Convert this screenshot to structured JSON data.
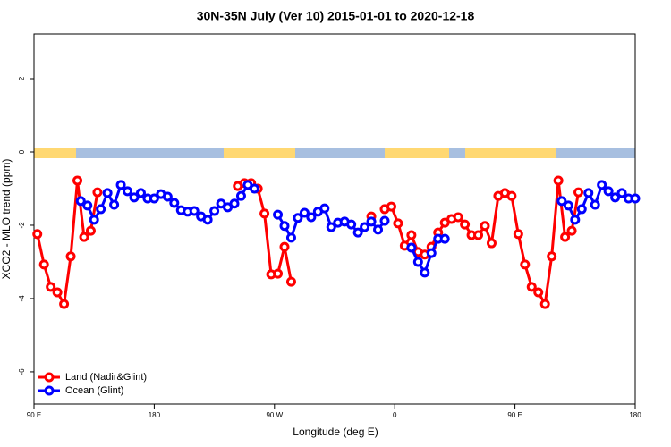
{
  "chart_data": {
    "type": "line",
    "title": "30N-35N July (Ver 10)   2015-01-01 to 2020-12-18",
    "xlabel": "Longitude (deg E)",
    "ylabel": "XCO2 - MLO trend (ppm)",
    "xlim": [
      90,
      540
    ],
    "ylim": [
      -6.88,
      3.22
    ],
    "xticks": [
      {
        "value": 90,
        "label": "90 E"
      },
      {
        "value": 180,
        "label": "180"
      },
      {
        "value": 270,
        "label": "90 W"
      },
      {
        "value": 360,
        "label": "0"
      },
      {
        "value": 450,
        "label": "90 E"
      },
      {
        "value": 540,
        "label": "180"
      }
    ],
    "yticks": [
      -6,
      -4,
      -2,
      0,
      2
    ],
    "legend": "bottomleft",
    "series": [
      {
        "name": "Land (Nadir&Glint)",
        "color": "#ff0000",
        "x": [
          92.5,
          97.5,
          102.5,
          107.5,
          112.5,
          117.5,
          122.5,
          127.5,
          132.5,
          137.5,
          null,
          242.5,
          247.5,
          252.5,
          257.5,
          262.5,
          267.5,
          272.5,
          277.5,
          282.5,
          null,
          342.5,
          null,
          352.5,
          357.5,
          362.5,
          367.5,
          372.5,
          377.5,
          382.5,
          387.5,
          392.5,
          397.5,
          402.5,
          407.5,
          412.5,
          417.5,
          422.5,
          427.5,
          432.5,
          437.5,
          442.5,
          447.5,
          452.5,
          457.5,
          462.5,
          467.5,
          472.5,
          477.5,
          482.5,
          487.5,
          492.5,
          497.5
        ],
        "values": [
          -2.24,
          -3.07,
          -3.68,
          -3.83,
          -4.15,
          -2.85,
          -0.78,
          -2.32,
          -2.15,
          -1.1,
          null,
          -0.93,
          -0.85,
          -0.85,
          -1.0,
          -1.68,
          -3.34,
          -3.32,
          -2.59,
          -3.54,
          null,
          -1.76,
          null,
          -1.56,
          -1.49,
          -1.95,
          -2.56,
          -2.27,
          -2.73,
          -2.8,
          -2.59,
          -2.2,
          -1.93,
          -1.83,
          -1.78,
          -1.98,
          -2.27,
          -2.27,
          -2.02,
          -2.49,
          -1.2,
          -1.12,
          -1.2,
          -2.24,
          -3.07,
          -3.68,
          -3.83,
          -4.15,
          -2.85,
          -0.78,
          -2.32,
          -2.15,
          -1.1
        ]
      },
      {
        "name": "Ocean (Glint)",
        "color": "#0000ff",
        "x": [
          125,
          130,
          135,
          140,
          145,
          150,
          155,
          160,
          165,
          170,
          175,
          180,
          185,
          190,
          195,
          200,
          205,
          210,
          215,
          220,
          225,
          230,
          235,
          240,
          245,
          250,
          255,
          null,
          272.5,
          277.5,
          282.5,
          287.5,
          292.5,
          297.5,
          302.5,
          307.5,
          312.5,
          317.5,
          322.5,
          327.5,
          332.5,
          337.5,
          342.5,
          347.5,
          352.5,
          null,
          372.5,
          377.5,
          382.5,
          387.5,
          392.5,
          397.5,
          null,
          485,
          490,
          495,
          500,
          505,
          510,
          515,
          520,
          525,
          530,
          535,
          540
        ],
        "values": [
          -1.34,
          -1.46,
          -1.85,
          -1.56,
          -1.12,
          -1.44,
          -0.9,
          -1.07,
          -1.24,
          -1.12,
          -1.27,
          -1.27,
          -1.15,
          -1.22,
          -1.39,
          -1.59,
          -1.63,
          -1.61,
          -1.76,
          -1.85,
          -1.61,
          -1.41,
          -1.51,
          -1.41,
          -1.2,
          -0.9,
          -1.0,
          null,
          -1.71,
          -2.02,
          -2.34,
          -1.8,
          -1.66,
          -1.78,
          -1.63,
          -1.54,
          -2.05,
          -1.93,
          -1.9,
          -1.98,
          -2.2,
          -2.05,
          -1.9,
          -2.12,
          -1.88,
          null,
          -2.61,
          -3.0,
          -3.29,
          -2.76,
          -2.37,
          -2.37,
          null,
          -1.34,
          -1.46,
          -1.85,
          -1.56,
          -1.12,
          -1.44,
          -0.9,
          -1.07,
          -1.24,
          -1.12,
          -1.27,
          -1.27
        ]
      }
    ]
  }
}
